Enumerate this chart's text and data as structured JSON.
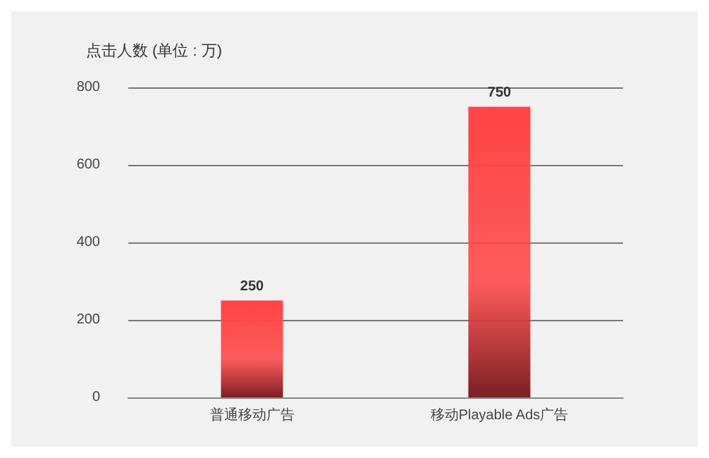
{
  "chart_data": {
    "type": "bar",
    "ylabel": "点击人数 (单位 : 万)",
    "categories": [
      "普通移动广告",
      "移动Playable Ads广告"
    ],
    "values": [
      250,
      750
    ],
    "color": "#ff4444",
    "ylim": [
      0,
      800
    ],
    "yticks": [
      0,
      200,
      400,
      600,
      800
    ],
    "grid": "y",
    "data_labels": true
  }
}
